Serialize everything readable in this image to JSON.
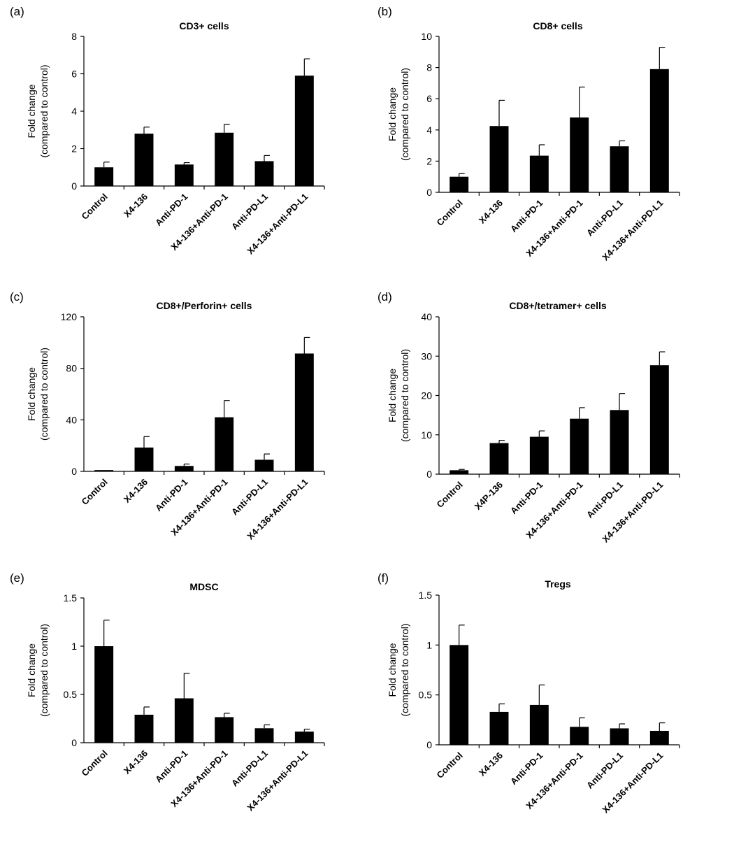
{
  "chart_data": [
    {
      "panel": "(a)",
      "type": "bar",
      "title": "CD3+ cells",
      "ylabel_lines": [
        "Fold change",
        "(compared to control)"
      ],
      "categories": [
        "Control",
        "X4-136",
        "Anti-PD-1",
        "X4-136+Anti-PD-1",
        "Anti-PD-L1",
        "X4-136+Anti-PD-L1"
      ],
      "values": [
        1.0,
        2.8,
        1.15,
        2.85,
        1.33,
        5.9
      ],
      "errors": [
        0.28,
        0.35,
        0.1,
        0.45,
        0.3,
        0.9
      ],
      "ylim": [
        0,
        8
      ],
      "yticks": [
        "0",
        "2",
        "4",
        "6",
        "8"
      ]
    },
    {
      "panel": "(b)",
      "type": "bar",
      "title": "CD8+ cells",
      "ylabel_lines": [
        "Fold change",
        "(compared to control)"
      ],
      "categories": [
        "Control",
        "X4-136",
        "Anti-PD-1",
        "X4-136+Anti-PD-1",
        "Anti-PD-L1",
        "X4-136+Anti-PD-L1"
      ],
      "values": [
        1.0,
        4.25,
        2.35,
        4.8,
        2.95,
        7.9
      ],
      "errors": [
        0.2,
        1.65,
        0.7,
        1.95,
        0.35,
        1.4
      ],
      "ylim": [
        0,
        10
      ],
      "yticks": [
        "0",
        "2",
        "4",
        "6",
        "8",
        "10"
      ]
    },
    {
      "panel": "(c)",
      "type": "bar",
      "title": "CD8+/Perforin+ cells",
      "ylabel_lines": [
        "Fold change",
        "(compared to control)"
      ],
      "categories": [
        "Control",
        "X4-136",
        "Anti-PD-1",
        "X4-136+Anti-PD-1",
        "Anti-PD-L1",
        "X4-136+Anti-PD-L1"
      ],
      "values": [
        1.0,
        18.5,
        4.2,
        42.0,
        9.0,
        91.5
      ],
      "errors": [
        0.0,
        8.5,
        1.5,
        13.0,
        4.5,
        12.5
      ],
      "ylim": [
        0,
        120
      ],
      "yticks": [
        "0",
        "40",
        "80",
        "120"
      ]
    },
    {
      "panel": "(d)",
      "type": "bar",
      "title": "CD8+/tetramer+ cells",
      "ylabel_lines": [
        "Fold change",
        "(compared to control)"
      ],
      "categories": [
        "Control",
        "X4P-136",
        "Anti-PD-1",
        "X4-136+Anti-PD-1",
        "Anti-PD-L1",
        "X4-136+Anti-PD-L1"
      ],
      "values": [
        1.0,
        7.9,
        9.5,
        14.1,
        16.3,
        27.7
      ],
      "errors": [
        0.2,
        0.7,
        1.5,
        2.8,
        4.2,
        3.4
      ],
      "ylim": [
        0,
        40
      ],
      "yticks": [
        "0",
        "10",
        "20",
        "30",
        "40"
      ]
    },
    {
      "panel": "(e)",
      "type": "bar",
      "title": "MDSC",
      "ylabel_lines": [
        "Fold change",
        "(compared to control)"
      ],
      "categories": [
        "Control",
        "X4-136",
        "Anti-PD-1",
        "X4-136+Anti-PD-1",
        "Anti-PD-L1",
        "X4-136+Anti-PD-L1"
      ],
      "values": [
        1.0,
        0.29,
        0.46,
        0.265,
        0.15,
        0.115
      ],
      "errors": [
        0.27,
        0.08,
        0.26,
        0.04,
        0.035,
        0.025
      ],
      "ylim": [
        0,
        1.5
      ],
      "yticks": [
        "0",
        "0.5",
        "1",
        "1.5"
      ]
    },
    {
      "panel": "(f)",
      "type": "bar",
      "title": "Tregs",
      "ylabel_lines": [
        "Fold change",
        "(compared to control)"
      ],
      "categories": [
        "Control",
        "X4-136",
        "Anti-PD-1",
        "X4-136+Anti-PD-1",
        "Anti-PD-L1",
        "X4-136+Anti-PD-L1"
      ],
      "values": [
        1.0,
        0.33,
        0.4,
        0.18,
        0.165,
        0.14
      ],
      "errors": [
        0.2,
        0.08,
        0.2,
        0.09,
        0.045,
        0.08
      ],
      "ylim": [
        0,
        1.5
      ],
      "yticks": [
        "0",
        "0.5",
        "1",
        "1.5"
      ]
    }
  ]
}
